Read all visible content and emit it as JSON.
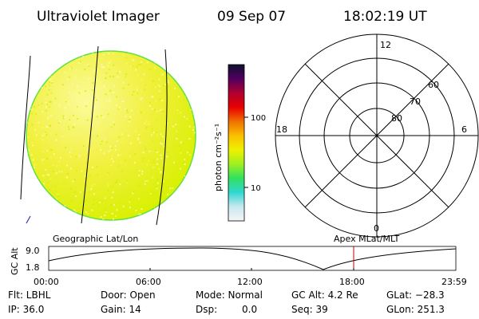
{
  "header": {
    "title": "Ultraviolet Imager",
    "date": "09 Sep 07",
    "time": "18:02:19 UT"
  },
  "colorbar": {
    "label": "photon cm⁻²s⁻¹",
    "ticks": [
      "100",
      "10"
    ],
    "stops": [
      "#f5f5f5",
      "#c8e8f0",
      "#30d8d0",
      "#30e060",
      "#a0f020",
      "#f0f000",
      "#f8c000",
      "#f07000",
      "#e80000",
      "#b00030",
      "#500060",
      "#101030"
    ]
  },
  "polar_plot": {
    "mlt_labels": {
      "top": "12",
      "right": "6",
      "bottom": "0",
      "left": "18"
    },
    "lat_labels": [
      "60",
      "70",
      "80"
    ]
  },
  "panel_labels": {
    "left": "Geographic Lat/Lon",
    "right": "Apex MLat/MLT"
  },
  "altitude_plot": {
    "ylabel": "GC Alt",
    "yticks": [
      "9.0",
      "1.8"
    ],
    "xticks": [
      "00:00",
      "06:00",
      "12:00",
      "18:00",
      "23:59"
    ],
    "marker_color": "#c00000"
  },
  "footer": {
    "row1": {
      "filter": "Flt: LBHL",
      "door": "Door: Open",
      "mode": "Mode: Normal",
      "gc_alt": "GC Alt: 4.2 Re",
      "glat": "GLat: −28.3"
    },
    "row2": {
      "ip": "IP: 36.0",
      "gain": "Gain: 14",
      "dsp_label": "Dsp:",
      "dsp_value": "0.0",
      "seq": "Seq: 39",
      "glon": "GLon: 251.3"
    }
  },
  "colors": {
    "disk_fill": "#f0f000",
    "disk_edge": "#60e040",
    "text": "#000000"
  }
}
